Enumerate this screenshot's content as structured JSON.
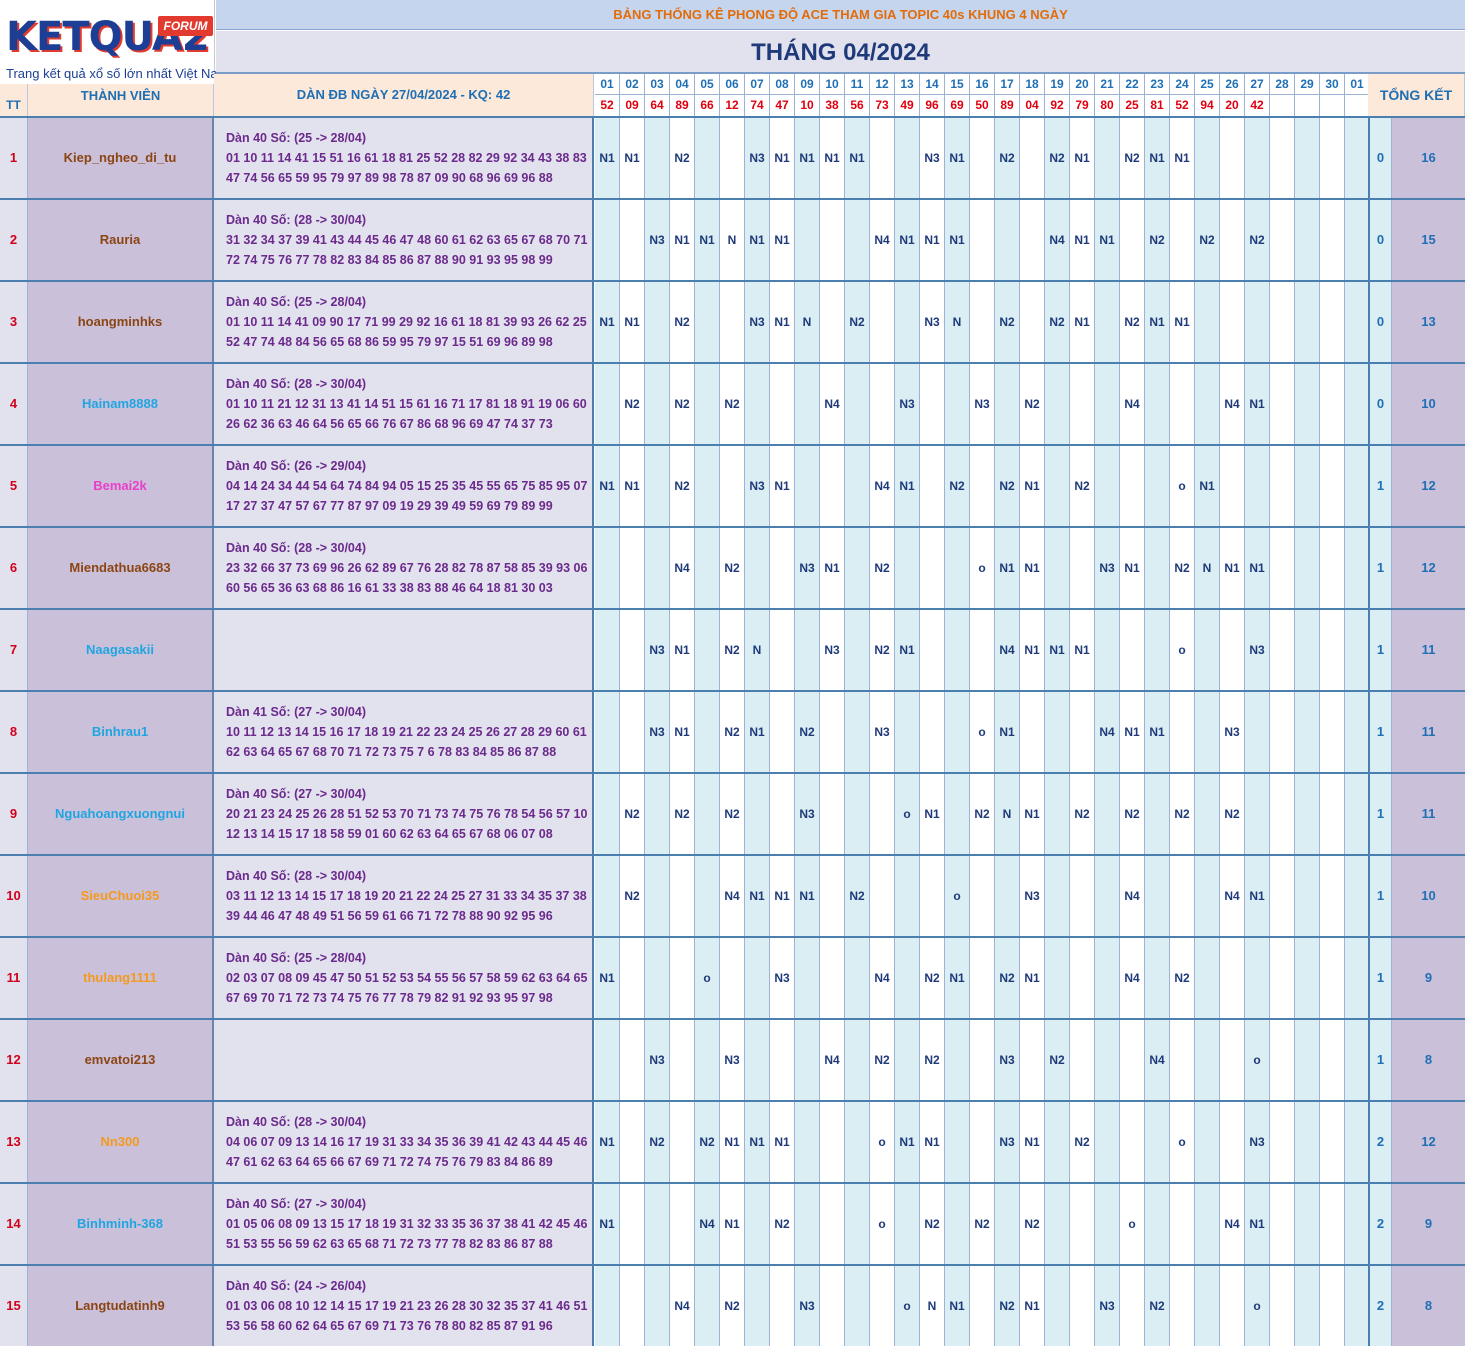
{
  "logo": {
    "brand": "KETQUA2",
    "forum": "FORUM",
    "tagline": "Trang kết quả xổ số lớn nhất Việt Nam"
  },
  "title": "BẢNG THỐNG KÊ PHONG ĐỘ ACE THAM GIA TOPIC 40s KHUNG 4 NGÀY",
  "month": "THÁNG 04/2024",
  "headers": {
    "tt": "TT",
    "member": "THÀNH VIÊN",
    "dan": "DÀN ĐB NGÀY 27/04/2024 - KQ: 42",
    "total": "TỔNG KẾT"
  },
  "days": [
    "01",
    "02",
    "03",
    "04",
    "05",
    "06",
    "07",
    "08",
    "09",
    "10",
    "11",
    "12",
    "13",
    "14",
    "15",
    "16",
    "17",
    "18",
    "19",
    "20",
    "21",
    "22",
    "23",
    "24",
    "25",
    "26",
    "27",
    "28",
    "29",
    "30",
    "01"
  ],
  "results": [
    "52",
    "09",
    "64",
    "89",
    "66",
    "12",
    "74",
    "47",
    "10",
    "38",
    "56",
    "73",
    "49",
    "96",
    "69",
    "50",
    "89",
    "04",
    "92",
    "79",
    "80",
    "25",
    "81",
    "52",
    "94",
    "20",
    "42",
    "",
    "",
    "",
    ""
  ],
  "colors": {
    "brown": "#8b4513",
    "blue": "#1fa5e0",
    "pink": "#e83fc8",
    "orange": "#f39a1e"
  },
  "rows": [
    {
      "tt": "1",
      "name": "Kiep_ngheo_di_tu",
      "color": "#8b4513",
      "dan": [
        "Dàn 40 Số: (25 -> 28/04)",
        "01 10 11 14 41 15 51 16 61 18 81 25 52 28 82 29 92 34 43 38 83",
        "47 74 56 65 59 95 79 97 89 98 78 87 09 90 68 96 69 96 88"
      ],
      "marks": [
        "N1",
        "N1",
        "",
        "N2",
        "",
        "",
        "N3",
        "N1",
        "N1",
        "N1",
        "N1",
        "",
        "",
        "N3",
        "N1",
        "",
        "N2",
        "",
        "N2",
        "N1",
        "",
        "N2",
        "N1",
        "N1",
        "",
        "",
        "",
        "",
        "",
        "",
        ""
      ],
      "miss": "0",
      "total": "16"
    },
    {
      "tt": "2",
      "name": "Rauria",
      "color": "#8b4513",
      "dan": [
        "Dàn 40 Số: (28 -> 30/04)",
        "31 32 34 37 39 41 43 44 45 46 47 48 60 61 62 63 65 67 68 70 71",
        "72 74 75 76 77 78 82 83 84 85 86 87 88 90 91 93 95 98 99"
      ],
      "marks": [
        "",
        "",
        "N3",
        "N1",
        "N1",
        "N",
        "N1",
        "N1",
        "",
        "",
        "",
        "N4",
        "N1",
        "N1",
        "N1",
        "",
        "",
        "",
        "N4",
        "N1",
        "N1",
        "",
        "N2",
        "",
        "N2",
        "",
        "N2",
        "",
        "",
        "",
        ""
      ],
      "miss": "0",
      "total": "15"
    },
    {
      "tt": "3",
      "name": "hoangminhks",
      "color": "#8b4513",
      "dan": [
        "Dàn 40 Số: (25 -> 28/04)",
        "01 10 11 14 41 09 90 17 71 99 29 92 16 61 18 81 39 93 26 62 25",
        "52 47 74 48 84 56 65 68 86 59 95 79 97 15 51 69 96 89 98"
      ],
      "marks": [
        "N1",
        "N1",
        "",
        "N2",
        "",
        "",
        "N3",
        "N1",
        "N",
        "",
        "N2",
        "",
        "",
        "N3",
        "N",
        "",
        "N2",
        "",
        "N2",
        "N1",
        "",
        "N2",
        "N1",
        "N1",
        "",
        "",
        "",
        "",
        "",
        "",
        ""
      ],
      "miss": "0",
      "total": "13"
    },
    {
      "tt": "4",
      "name": "Hainam8888",
      "color": "#1fa5e0",
      "dan": [
        "Dàn 40 Số: (28 -> 30/04)",
        "01 10 11 21 12 31 13 41 14 51 15 61 16 71 17 81 18 91 19 06 60",
        "26 62 36 63 46 64 56 65 66 76 67 86 68 96 69 47 74 37 73"
      ],
      "marks": [
        "",
        "N2",
        "",
        "N2",
        "",
        "N2",
        "",
        "",
        "",
        "N4",
        "",
        "",
        "N3",
        "",
        "",
        "N3",
        "",
        "N2",
        "",
        "",
        "",
        "N4",
        "",
        "",
        "",
        "N4",
        "N1",
        "",
        "",
        "",
        ""
      ],
      "miss": "0",
      "total": "10"
    },
    {
      "tt": "5",
      "name": "Bemai2k",
      "color": "#e83fc8",
      "dan": [
        "Dàn 40 Số: (26 -> 29/04)",
        "04 14 24 34 44 54 64 74 84 94 05 15 25 35 45 55 65 75 85 95 07",
        "17 27 37 47 57 67 77 87 97 09 19 29 39 49 59 69 79 89 99"
      ],
      "marks": [
        "N1",
        "N1",
        "",
        "N2",
        "",
        "",
        "N3",
        "N1",
        "",
        "",
        "",
        "N4",
        "N1",
        "",
        "N2",
        "",
        "N2",
        "N1",
        "",
        "N2",
        "",
        "",
        "",
        "o",
        "N1",
        "",
        "",
        "",
        "",
        "",
        ""
      ],
      "miss": "1",
      "total": "12"
    },
    {
      "tt": "6",
      "name": "Miendathua6683",
      "color": "#8b4513",
      "dan": [
        "Dàn 40 Số: (28 -> 30/04)",
        "23 32 66 37 73 69 96 26 62 89 67 76 28 82 78 87 58 85 39 93 06",
        "60 56 65 36 63 68 86 16 61 33 38 83 88 46 64 18 81 30 03"
      ],
      "marks": [
        "",
        "",
        "",
        "N4",
        "",
        "N2",
        "",
        "",
        "N3",
        "N1",
        "",
        "N2",
        "",
        "",
        "",
        "o",
        "N1",
        "N1",
        "",
        "",
        "N3",
        "N1",
        "",
        "N2",
        "N",
        "N1",
        "N1",
        "",
        "",
        "",
        ""
      ],
      "miss": "1",
      "total": "12"
    },
    {
      "tt": "7",
      "name": "Naagasakii",
      "color": "#1fa5e0",
      "dan": [
        "",
        "",
        ""
      ],
      "marks": [
        "",
        "",
        "N3",
        "N1",
        "",
        "N2",
        "N",
        "",
        "",
        "N3",
        "",
        "N2",
        "N1",
        "",
        "",
        "",
        "N4",
        "N1",
        "N1",
        "N1",
        "",
        "",
        "",
        "o",
        "",
        "",
        "N3",
        "",
        "",
        "",
        ""
      ],
      "miss": "1",
      "total": "11"
    },
    {
      "tt": "8",
      "name": "Binhrau1",
      "color": "#1fa5e0",
      "dan": [
        "Dàn 41 Số: (27 -> 30/04)",
        "10 11 12 13 14 15 16 17 18 19 21 22 23 24 25 26 27 28 29 60 61",
        "62 63 64 65 67 68 70 71 72 73 75 7 6 78 83 84 85 86 87 88"
      ],
      "marks": [
        "",
        "",
        "N3",
        "N1",
        "",
        "N2",
        "N1",
        "",
        "N2",
        "",
        "",
        "N3",
        "",
        "",
        "",
        "o",
        "N1",
        "",
        "",
        "",
        "N4",
        "N1",
        "N1",
        "",
        "",
        "N3",
        "",
        "",
        "",
        "",
        ""
      ],
      "miss": "1",
      "total": "11"
    },
    {
      "tt": "9",
      "name": "Nguahoangxuongnui",
      "color": "#1fa5e0",
      "dan": [
        "Dàn 40 Số: (27 -> 30/04)",
        "20 21 23 24 25 26 28 51 52 53 70 71 73 74 75 76 78 54 56 57 10",
        "12 13 14 15 17 18 58 59 01 60 62 63 64 65 67 68 06 07 08"
      ],
      "marks": [
        "",
        "N2",
        "",
        "N2",
        "",
        "N2",
        "",
        "",
        "N3",
        "",
        "",
        "",
        "o",
        "N1",
        "",
        "N2",
        "N",
        "N1",
        "",
        "N2",
        "",
        "N2",
        "",
        "N2",
        "",
        "N2",
        "",
        "",
        "",
        "",
        ""
      ],
      "miss": "1",
      "total": "11"
    },
    {
      "tt": "10",
      "name": "SieuChuoi35",
      "color": "#f39a1e",
      "dan": [
        "Dàn 40 Số: (28 -> 30/04)",
        "03 11 12 13 14 15 17 18 19 20 21 22 24 25 27 31 33 34 35 37 38",
        "39 44 46 47 48 49 51 56 59 61 66 71 72 78 88 90 92 95 96"
      ],
      "marks": [
        "",
        "N2",
        "",
        "",
        "",
        "N4",
        "N1",
        "N1",
        "N1",
        "",
        "N2",
        "",
        "",
        "",
        "o",
        "",
        "",
        "N3",
        "",
        "",
        "",
        "N4",
        "",
        "",
        "",
        "N4",
        "N1",
        "",
        "",
        "",
        ""
      ],
      "miss": "1",
      "total": "10"
    },
    {
      "tt": "11",
      "name": "thulang1111",
      "color": "#f39a1e",
      "dan": [
        "Dàn 40 Số: (25 -> 28/04)",
        "02 03 07 08 09 45 47 50 51 52 53 54 55 56 57 58 59 62 63 64 65",
        "67 69 70 71 72 73 74 75 76 77 78 79 82 91 92 93 95 97 98"
      ],
      "marks": [
        "N1",
        "",
        "",
        "",
        "o",
        "",
        "",
        "N3",
        "",
        "",
        "",
        "N4",
        "",
        "N2",
        "N1",
        "",
        "N2",
        "N1",
        "",
        "",
        "",
        "N4",
        "",
        "N2",
        "",
        "",
        "",
        "",
        "",
        "",
        ""
      ],
      "miss": "1",
      "total": "9"
    },
    {
      "tt": "12",
      "name": "emvatoi213",
      "color": "#8b4513",
      "dan": [
        "",
        "",
        ""
      ],
      "marks": [
        "",
        "",
        "N3",
        "",
        "",
        "N3",
        "",
        "",
        "",
        "N4",
        "",
        "N2",
        "",
        "N2",
        "",
        "",
        "N3",
        "",
        "N2",
        "",
        "",
        "",
        "N4",
        "",
        "",
        "",
        "o",
        "",
        "",
        "",
        ""
      ],
      "miss": "1",
      "total": "8"
    },
    {
      "tt": "13",
      "name": "Nn300",
      "color": "#f39a1e",
      "dan": [
        "Dàn 40 Số: (28 -> 30/04)",
        "04 06 07 09 13 14 16 17 19 31 33 34 35 36 39 41 42 43 44 45 46",
        "47 61 62 63 64 65 66 67 69 71 72 74 75 76 79 83 84 86 89"
      ],
      "marks": [
        "N1",
        "",
        "N2",
        "",
        "N2",
        "N1",
        "N1",
        "N1",
        "",
        "",
        "",
        "o",
        "N1",
        "N1",
        "",
        "",
        "N3",
        "N1",
        "",
        "N2",
        "",
        "",
        "",
        "o",
        "",
        "",
        "N3",
        "",
        "",
        "",
        ""
      ],
      "miss": "2",
      "total": "12"
    },
    {
      "tt": "14",
      "name": "Binhminh-368",
      "color": "#1fa5e0",
      "dan": [
        "Dàn 40 Số: (27 -> 30/04)",
        "01 05 06 08 09 13 15 17 18 19 31 32 33 35 36 37 38 41 42 45 46",
        "51 53 55 56 59 62 63 65 68 71 72 73 77 78 82 83 86 87 88"
      ],
      "marks": [
        "N1",
        "",
        "",
        "",
        "N4",
        "N1",
        "",
        "N2",
        "",
        "",
        "",
        "o",
        "",
        "N2",
        "",
        "N2",
        "",
        "N2",
        "",
        "",
        "",
        "o",
        "",
        "",
        "",
        "N4",
        "N1",
        "",
        "",
        "",
        ""
      ],
      "miss": "2",
      "total": "9"
    },
    {
      "tt": "15",
      "name": "Langtudatinh9",
      "color": "#8b4513",
      "dan": [
        "Dàn 40 Số: (24 -> 26/04)",
        "01 03 06 08 10 12 14 15 17 19 21 23 26 28 30 32 35 37 41 46 51",
        "53 56 58 60 62 64 65 67 69 71 73 76 78 80 82 85 87 91 96"
      ],
      "marks": [
        "",
        "",
        "",
        "N4",
        "",
        "N2",
        "",
        "",
        "N3",
        "",
        "",
        "",
        "o",
        "N",
        "N1",
        "",
        "N2",
        "N1",
        "",
        "",
        "N3",
        "",
        "N2",
        "",
        "",
        "",
        "o",
        "",
        "",
        "",
        ""
      ],
      "miss": "2",
      "total": "8"
    }
  ]
}
